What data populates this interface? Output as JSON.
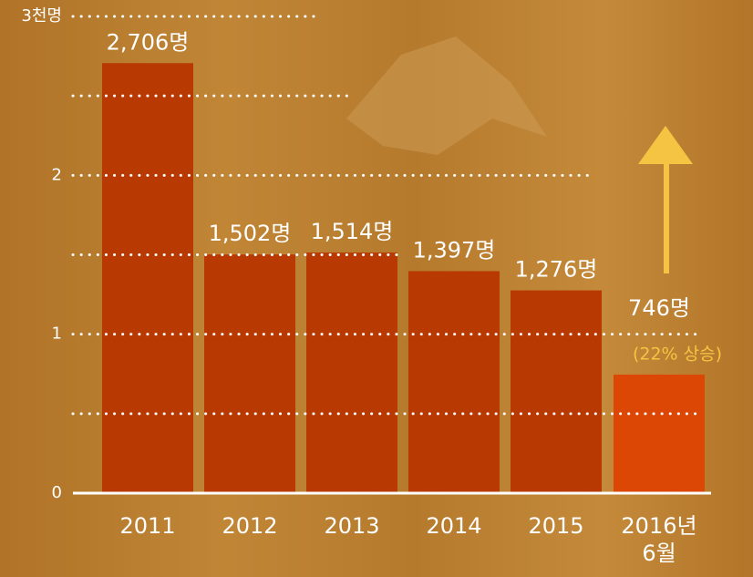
{
  "chart_data": {
    "type": "bar",
    "categories": [
      "2011",
      "2012",
      "2013",
      "2014",
      "2015",
      "2016년 6월"
    ],
    "values": [
      2.706,
      1.502,
      1.514,
      1.397,
      1.276,
      0.746
    ],
    "value_labels": [
      "2,706명",
      "1,502명",
      "1,514명",
      "1,397명",
      "1,276명",
      "746명"
    ],
    "colors": [
      "#b83a02",
      "#b83a02",
      "#b83a02",
      "#b83a02",
      "#b83a02",
      "#dd4705"
    ],
    "annotation": "(22% 상승)",
    "ylim": [
      0,
      3
    ],
    "yticks": [
      0,
      1,
      2,
      {
        "value": 3,
        "label": "3천명"
      }
    ],
    "minor_grid": [
      0.5,
      1.5,
      2.5
    ],
    "grid": true
  }
}
